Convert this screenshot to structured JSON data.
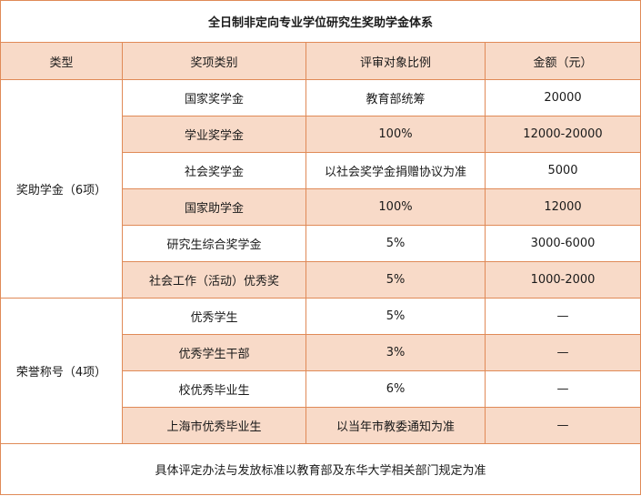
{
  "title": "全日制非定向专业学位研究生奖助学金体系",
  "headers": [
    "类型",
    "奖项类别",
    "评审对象比例",
    "金额（元）"
  ],
  "groups": [
    {
      "type": "奖助学金（6项）",
      "rows": [
        {
          "name": "国家奖学金",
          "ratio": "教育部统筹",
          "amount": "20000",
          "shaded": false
        },
        {
          "name": "学业奖学金",
          "ratio": "100%",
          "amount": "12000-20000",
          "shaded": true
        },
        {
          "name": "社会奖学金",
          "ratio": "以社会奖学金捐赠协议为准",
          "amount": "5000",
          "shaded": false
        },
        {
          "name": "国家助学金",
          "ratio": "100%",
          "amount": "12000",
          "shaded": true
        },
        {
          "name": "研究生综合奖学金",
          "ratio": "5%",
          "amount": "3000-6000",
          "shaded": false
        },
        {
          "name": "社会工作（活动）优秀奖",
          "ratio": "5%",
          "amount": "1000-2000",
          "shaded": true
        }
      ]
    },
    {
      "type": "荣誉称号（4项）",
      "rows": [
        {
          "name": "优秀学生",
          "ratio": "5%",
          "amount": "—",
          "shaded": false
        },
        {
          "name": "优秀学生干部",
          "ratio": "3%",
          "amount": "—",
          "shaded": true
        },
        {
          "name": "校优秀毕业生",
          "ratio": "6%",
          "amount": "—",
          "shaded": false
        },
        {
          "name": "上海市优秀毕业生",
          "ratio": "以当年市教委通知为准",
          "amount": "—",
          "shaded": true
        }
      ]
    }
  ],
  "footer": "具体评定办法与发放标准以教育部及东华大学相关部门规定为准",
  "colors": {
    "border": "#e08a57",
    "shade": "#f8dac8"
  }
}
